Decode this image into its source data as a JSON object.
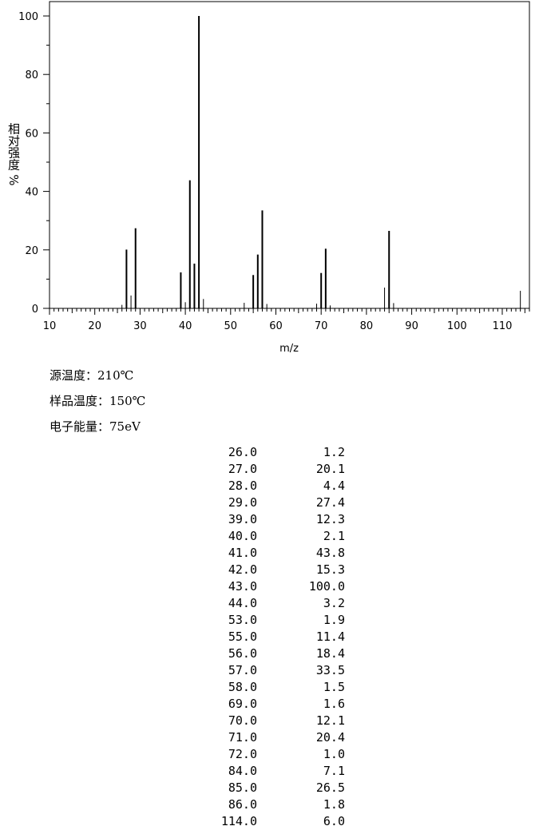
{
  "chart_data": {
    "type": "bar",
    "xlabel": "m/z",
    "ylabel": "相对强度 %",
    "xlim": [
      10,
      116
    ],
    "ylim": [
      0,
      100
    ],
    "x_ticks": [
      10,
      20,
      30,
      40,
      50,
      60,
      70,
      80,
      90,
      100,
      110
    ],
    "y_ticks": [
      0,
      20,
      40,
      60,
      80,
      100
    ],
    "grid": false,
    "x": [
      26,
      27,
      28,
      29,
      39,
      40,
      41,
      42,
      43,
      44,
      53,
      55,
      56,
      57,
      58,
      69,
      70,
      71,
      72,
      84,
      85,
      86,
      114
    ],
    "values": [
      1.2,
      20.1,
      4.4,
      27.4,
      12.3,
      2.1,
      43.8,
      15.3,
      100.0,
      3.2,
      1.9,
      11.4,
      18.4,
      33.5,
      1.5,
      1.6,
      12.1,
      20.4,
      1.0,
      7.1,
      26.5,
      1.8,
      6.0
    ],
    "bar_color": "#000000"
  },
  "conditions": [
    {
      "label": "源温度：",
      "value": "210℃"
    },
    {
      "label": "样品温度：",
      "value": "150℃"
    },
    {
      "label": "电子能量：",
      "value": "75eV"
    }
  ],
  "peak_table": [
    [
      "26.0",
      "1.2"
    ],
    [
      "27.0",
      "20.1"
    ],
    [
      "28.0",
      "4.4"
    ],
    [
      "29.0",
      "27.4"
    ],
    [
      "39.0",
      "12.3"
    ],
    [
      "40.0",
      "2.1"
    ],
    [
      "41.0",
      "43.8"
    ],
    [
      "42.0",
      "15.3"
    ],
    [
      "43.0",
      "100.0"
    ],
    [
      "44.0",
      "3.2"
    ],
    [
      "53.0",
      "1.9"
    ],
    [
      "55.0",
      "11.4"
    ],
    [
      "56.0",
      "18.4"
    ],
    [
      "57.0",
      "33.5"
    ],
    [
      "58.0",
      "1.5"
    ],
    [
      "69.0",
      "1.6"
    ],
    [
      "70.0",
      "12.1"
    ],
    [
      "71.0",
      "20.4"
    ],
    [
      "72.0",
      "1.0"
    ],
    [
      "84.0",
      "7.1"
    ],
    [
      "85.0",
      "26.5"
    ],
    [
      "86.0",
      "1.8"
    ],
    [
      "114.0",
      "6.0"
    ]
  ]
}
